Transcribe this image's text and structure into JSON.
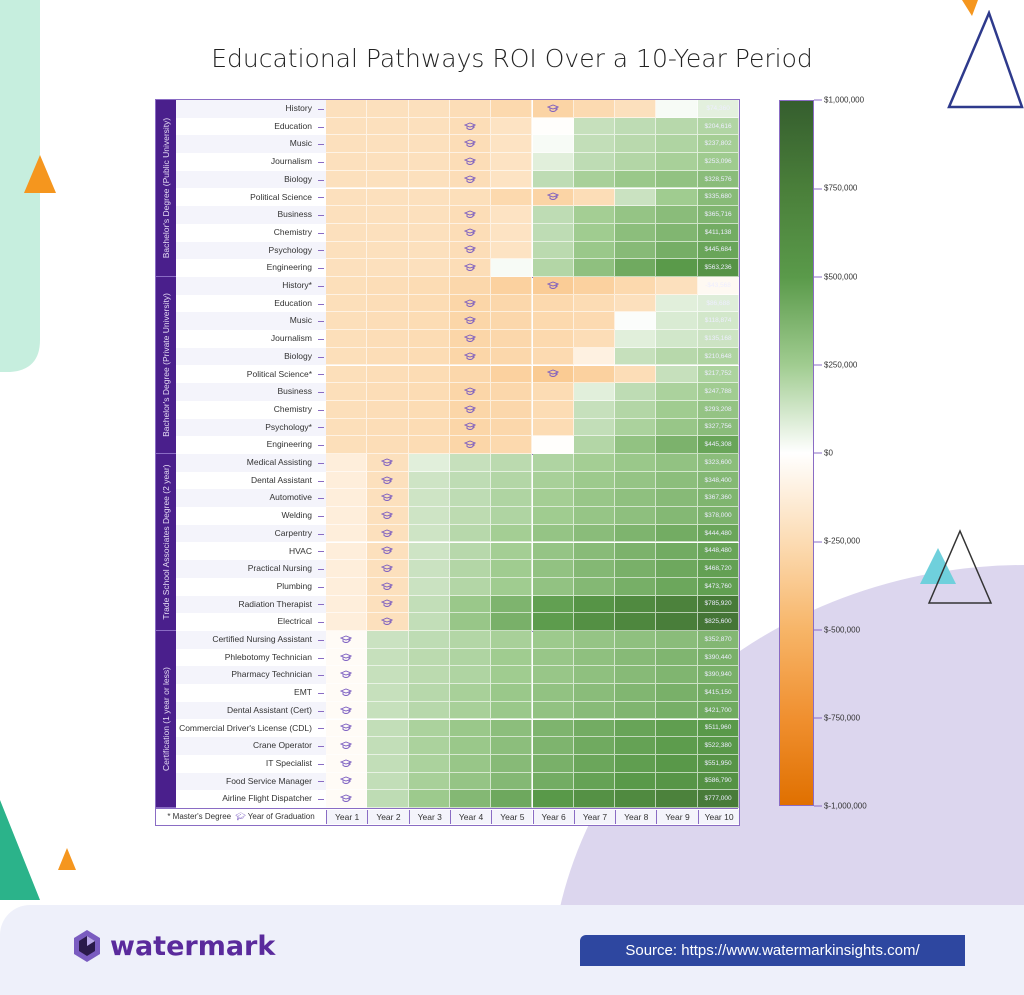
{
  "colors": {
    "negative_max": "#e07000",
    "neutral": "#ffffff",
    "positive_max": "#355e2e",
    "frame": "#8a6cc4",
    "group_band": "#4a1f8c",
    "source_bg": "#2e47a0"
  },
  "footer": {
    "logo_text": "watermark",
    "source": "Source: https://www.watermarkinsights.com/"
  },
  "chart_data": {
    "type": "heatmap",
    "title": "Educational Pathways ROI Over a 10-Year Period",
    "x_categories": [
      "Year 1",
      "Year 2",
      "Year 3",
      "Year 4",
      "Year 5",
      "Year 6",
      "Year 7",
      "Year 8",
      "Year 9",
      "Year 10"
    ],
    "legend_note": {
      "masters": "* Master's Degree",
      "graduation": "Year of Graduation"
    },
    "colorbar": {
      "min": -1000000,
      "max": 1000000,
      "ticks": [
        "$1,000,000",
        "$750,000",
        "$500,000",
        "$250,000",
        "$0",
        "$-250,000",
        "$-500,000",
        "$-750,000",
        "$-1,000,000"
      ],
      "tick_values": [
        1000000,
        750000,
        500000,
        250000,
        0,
        -250000,
        -500000,
        -750000,
        -1000000
      ]
    },
    "value_unit": "USD (thousands for years 1-9 estimates; year 10 exact)",
    "groups": [
      {
        "name": "Bachelor's Degree (Public University)",
        "rows": [
          {
            "label": "History",
            "grad_year": 6,
            "values": [
              -220,
              -220,
              -220,
              -240,
              -270,
              -300,
              -260,
              -220,
              20,
              74.36
            ],
            "year10_label": "$74,360"
          },
          {
            "label": "Education",
            "grad_year": 4,
            "values": [
              -220,
              -220,
              -220,
              -240,
              -200,
              -10,
              150,
              170,
              190,
              204.616
            ],
            "year10_label": "$204,616"
          },
          {
            "label": "Music",
            "grad_year": 4,
            "values": [
              -220,
              -220,
              -220,
              -240,
              -200,
              20,
              160,
              185,
              210,
              237.802
            ],
            "year10_label": "$237,802"
          },
          {
            "label": "Journalism",
            "grad_year": 4,
            "values": [
              -220,
              -220,
              -220,
              -240,
              -200,
              80,
              170,
              200,
              230,
              253.096
            ],
            "year10_label": "$253,096"
          },
          {
            "label": "Biology",
            "grad_year": 4,
            "values": [
              -220,
              -220,
              -220,
              -240,
              -200,
              170,
              230,
              270,
              300,
              328.576
            ],
            "year10_label": "$328,576"
          },
          {
            "label": "Political Science",
            "grad_year": 6,
            "values": [
              -220,
              -220,
              -220,
              -230,
              -270,
              -300,
              -240,
              140,
              250,
              335.68
            ],
            "year10_label": "$335,680"
          },
          {
            "label": "Business",
            "grad_year": 4,
            "values": [
              -220,
              -220,
              -220,
              -240,
              -200,
              170,
              240,
              290,
              330,
              365.716
            ],
            "year10_label": "$365,716"
          },
          {
            "label": "Chemistry",
            "grad_year": 4,
            "values": [
              -220,
              -220,
              -220,
              -240,
              -200,
              170,
              250,
              320,
              360,
              411.138
            ],
            "year10_label": "$411,138"
          },
          {
            "label": "Psychology",
            "grad_year": 4,
            "values": [
              -220,
              -220,
              -220,
              -240,
              -200,
              180,
              270,
              340,
              400,
              445.684
            ],
            "year10_label": "$445,684"
          },
          {
            "label": "Engineering",
            "grad_year": 4,
            "values": [
              -220,
              -220,
              -220,
              -240,
              20,
              200,
              310,
              420,
              500,
              563.236
            ],
            "year10_label": "$563,236"
          }
        ]
      },
      {
        "name": "Bachelor's Degree (Private University)",
        "rows": [
          {
            "label": "History*",
            "grad_year": 6,
            "values": [
              -230,
              -240,
              -250,
              -280,
              -320,
              -350,
              -320,
              -270,
              -220,
              -43.568
            ],
            "year10_label": "-$43,568"
          },
          {
            "label": "Education",
            "grad_year": 4,
            "values": [
              -230,
              -240,
              -250,
              -290,
              -280,
              -270,
              -250,
              -220,
              80,
              86.688
            ],
            "year10_label": "$86,688"
          },
          {
            "label": "Music",
            "grad_year": 4,
            "values": [
              -230,
              -240,
              -250,
              -290,
              -280,
              -270,
              -260,
              10,
              100,
              118.874
            ],
            "year10_label": "$118,874"
          },
          {
            "label": "Journalism",
            "grad_year": 4,
            "values": [
              -230,
              -240,
              -250,
              -290,
              -280,
              -270,
              -240,
              80,
              120,
              135.168
            ],
            "year10_label": "$135,168"
          },
          {
            "label": "Biology",
            "grad_year": 4,
            "values": [
              -230,
              -240,
              -250,
              -290,
              -280,
              -260,
              -100,
              150,
              190,
              210.648
            ],
            "year10_label": "$210,648"
          },
          {
            "label": "Political Science*",
            "grad_year": 6,
            "values": [
              -230,
              -240,
              -250,
              -280,
              -320,
              -360,
              -320,
              -240,
              150,
              217.752
            ],
            "year10_label": "$217,752"
          },
          {
            "label": "Business",
            "grad_year": 4,
            "values": [
              -230,
              -240,
              -250,
              -290,
              -280,
              -250,
              80,
              170,
              220,
              247.788
            ],
            "year10_label": "$247,788"
          },
          {
            "label": "Chemistry",
            "grad_year": 4,
            "values": [
              -230,
              -240,
              -250,
              -290,
              -280,
              -250,
              150,
              200,
              250,
              293.208
            ],
            "year10_label": "$293,208"
          },
          {
            "label": "Psychology*",
            "grad_year": 4,
            "values": [
              -230,
              -240,
              -250,
              -290,
              -280,
              -250,
              160,
              220,
              280,
              327.756
            ],
            "year10_label": "$327,756"
          },
          {
            "label": "Engineering",
            "grad_year": 4,
            "values": [
              -230,
              -240,
              -250,
              -290,
              -270,
              -10,
              200,
              300,
              380,
              445.308
            ],
            "year10_label": "$445,308"
          }
        ]
      },
      {
        "name": "Trade School Associates Degree (2 year)",
        "rows": [
          {
            "label": "Medical Assisting",
            "grad_year": 2,
            "values": [
              -120,
              -220,
              80,
              150,
              180,
              210,
              240,
              270,
              300,
              323.6
            ],
            "year10_label": "$323,600"
          },
          {
            "label": "Dental Assistant",
            "grad_year": 2,
            "values": [
              -120,
              -220,
              130,
              170,
              200,
              230,
              260,
              290,
              320,
              348.4
            ],
            "year10_label": "$348,400"
          },
          {
            "label": "Automotive",
            "grad_year": 2,
            "values": [
              -120,
              -220,
              130,
              170,
              210,
              240,
              280,
              310,
              340,
              367.36
            ],
            "year10_label": "$367,360"
          },
          {
            "label": "Welding",
            "grad_year": 2,
            "values": [
              -120,
              -220,
              130,
              175,
              210,
              250,
              285,
              315,
              350,
              378
            ],
            "year10_label": "$378,000"
          },
          {
            "label": "Carpentry",
            "grad_year": 2,
            "values": [
              -120,
              -220,
              130,
              190,
              240,
              290,
              330,
              370,
              410,
              444.48
            ],
            "year10_label": "$444,480"
          },
          {
            "label": "HVAC",
            "grad_year": 2,
            "values": [
              -120,
              -220,
              130,
              190,
              240,
              290,
              335,
              380,
              415,
              448.48
            ],
            "year10_label": "$448,480"
          },
          {
            "label": "Practical Nursing",
            "grad_year": 2,
            "values": [
              -120,
              -220,
              140,
              200,
              250,
              300,
              350,
              390,
              430,
              468.72
            ],
            "year10_label": "$468,720"
          },
          {
            "label": "Plumbing",
            "grad_year": 2,
            "values": [
              -120,
              -220,
              140,
              200,
              250,
              300,
              350,
              395,
              435,
              473.76
            ],
            "year10_label": "$473,760"
          },
          {
            "label": "Radiation Therapist",
            "grad_year": 2,
            "values": [
              -120,
              -220,
              160,
              270,
              370,
              470,
              560,
              650,
              720,
              785.92
            ],
            "year10_label": "$785,920"
          },
          {
            "label": "Electrical",
            "grad_year": 2,
            "values": [
              -120,
              -220,
              160,
              280,
              390,
              490,
              590,
              680,
              760,
              825.6
            ],
            "year10_label": "$825,600"
          }
        ]
      },
      {
        "name": "Certification (1 year or less)",
        "rows": [
          {
            "label": "Certified Nursing Assistant",
            "grad_year": 1,
            "values": [
              -30,
              140,
              170,
              200,
              230,
              260,
              290,
              310,
              330,
              352.87
            ],
            "year10_label": "$352,870"
          },
          {
            "label": "Phlebotomy Technician",
            "grad_year": 1,
            "values": [
              -30,
              150,
              180,
              210,
              250,
              280,
              310,
              340,
              365,
              390.44
            ],
            "year10_label": "$390,440"
          },
          {
            "label": "Pharmacy Technician",
            "grad_year": 1,
            "values": [
              -30,
              150,
              180,
              210,
              250,
              280,
              310,
              340,
              365,
              390.94
            ],
            "year10_label": "$390,940"
          },
          {
            "label": "EMT",
            "grad_year": 1,
            "values": [
              -30,
              150,
              190,
              230,
              270,
              300,
              330,
              360,
              390,
              415.15
            ],
            "year10_label": "$415,150"
          },
          {
            "label": "Dental Assistant (Cert)",
            "grad_year": 1,
            "values": [
              -30,
              150,
              190,
              230,
              270,
              300,
              335,
              365,
              395,
              421.7
            ],
            "year10_label": "$421,700"
          },
          {
            "label": "Commercial Driver's License (CDL)",
            "grad_year": 1,
            "values": [
              -30,
              160,
              220,
              270,
              320,
              370,
              410,
              450,
              480,
              511.96
            ],
            "year10_label": "$511,960"
          },
          {
            "label": "Crane Operator",
            "grad_year": 1,
            "values": [
              -30,
              160,
              220,
              270,
              320,
              370,
              420,
              460,
              490,
              522.38
            ],
            "year10_label": "$522,380"
          },
          {
            "label": "IT Specialist",
            "grad_year": 1,
            "values": [
              -30,
              160,
              220,
              280,
              340,
              390,
              440,
              480,
              520,
              551.95
            ],
            "year10_label": "$551,950"
          },
          {
            "label": "Food Service Manager",
            "grad_year": 1,
            "values": [
              -30,
              160,
              230,
              290,
              350,
              410,
              460,
              510,
              550,
              586.79
            ],
            "year10_label": "$586,790"
          },
          {
            "label": "Airline Flight Dispatcher",
            "grad_year": 1,
            "values": [
              -30,
              170,
              260,
              350,
              430,
              510,
              580,
              650,
              720,
              777
            ],
            "year10_label": "$777,000"
          }
        ]
      }
    ]
  }
}
